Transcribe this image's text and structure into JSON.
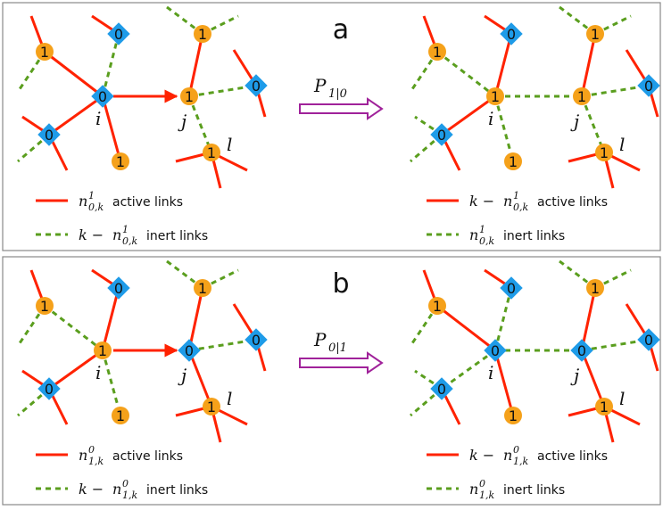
{
  "colors": {
    "active": "#ff2200",
    "inert": "#5a9e1e",
    "node_one": "#f5a11a",
    "node_zero": "#1e9be8",
    "arrow": "#a0229a",
    "frame": "#888888"
  },
  "panels": [
    {
      "letter": "a",
      "operator": "P",
      "operator_sub": "1|0",
      "left": {
        "nodes": [
          {
            "label": "1",
            "kind": "one"
          },
          {
            "label": "0",
            "kind": "zero"
          },
          {
            "label": "0",
            "kind": "zero"
          },
          {
            "label": "0",
            "kind": "zero"
          },
          {
            "label": "1",
            "kind": "one"
          },
          {
            "label": "1",
            "kind": "one"
          },
          {
            "label": "1",
            "kind": "one"
          },
          {
            "label": "0",
            "kind": "zero"
          },
          {
            "label": "1",
            "kind": "one"
          }
        ],
        "legend": [
          {
            "style": "active",
            "math": "n",
            "sup": "1",
            "sub": "0,k",
            "prefix": "",
            "text": "active links"
          },
          {
            "style": "inert",
            "math": "n",
            "sup": "1",
            "sub": "0,k",
            "prefix": "k − ",
            "text": "inert links"
          }
        ]
      },
      "right": {
        "nodes": [
          {
            "label": "1",
            "kind": "one"
          },
          {
            "label": "0",
            "kind": "zero"
          },
          {
            "label": "1",
            "kind": "one"
          },
          {
            "label": "0",
            "kind": "zero"
          },
          {
            "label": "1",
            "kind": "one"
          },
          {
            "label": "1",
            "kind": "one"
          },
          {
            "label": "1",
            "kind": "one"
          },
          {
            "label": "0",
            "kind": "zero"
          },
          {
            "label": "1",
            "kind": "one"
          }
        ],
        "legend": [
          {
            "style": "active",
            "math": "n",
            "sup": "1",
            "sub": "0,k",
            "prefix": "k − ",
            "text": "active links"
          },
          {
            "style": "inert",
            "math": "n",
            "sup": "1",
            "sub": "0,k",
            "prefix": "",
            "text": "inert links"
          }
        ]
      },
      "node_names": {
        "i": "i",
        "j": "j",
        "l": "l"
      }
    },
    {
      "letter": "b",
      "operator": "P",
      "operator_sub": "0|1",
      "left": {
        "nodes": [
          {
            "label": "1",
            "kind": "one"
          },
          {
            "label": "0",
            "kind": "zero"
          },
          {
            "label": "1",
            "kind": "one"
          },
          {
            "label": "0",
            "kind": "zero"
          },
          {
            "label": "1",
            "kind": "one"
          },
          {
            "label": "1",
            "kind": "one"
          },
          {
            "label": "0",
            "kind": "zero"
          },
          {
            "label": "0",
            "kind": "zero"
          },
          {
            "label": "1",
            "kind": "one"
          }
        ],
        "legend": [
          {
            "style": "active",
            "math": "n",
            "sup": "0",
            "sub": "1,k",
            "prefix": "",
            "text": "active links"
          },
          {
            "style": "inert",
            "math": "n",
            "sup": "0",
            "sub": "1,k",
            "prefix": "k − ",
            "text": "inert links"
          }
        ]
      },
      "right": {
        "nodes": [
          {
            "label": "1",
            "kind": "one"
          },
          {
            "label": "0",
            "kind": "zero"
          },
          {
            "label": "0",
            "kind": "zero"
          },
          {
            "label": "0",
            "kind": "zero"
          },
          {
            "label": "1",
            "kind": "one"
          },
          {
            "label": "1",
            "kind": "one"
          },
          {
            "label": "0",
            "kind": "zero"
          },
          {
            "label": "0",
            "kind": "zero"
          },
          {
            "label": "1",
            "kind": "one"
          }
        ],
        "legend": [
          {
            "style": "active",
            "math": "n",
            "sup": "0",
            "sub": "1,k",
            "prefix": "k − ",
            "text": "active links"
          },
          {
            "style": "inert",
            "math": "n",
            "sup": "0",
            "sub": "1,k",
            "prefix": "",
            "text": "inert links"
          }
        ]
      },
      "node_names": {
        "i": "i",
        "j": "j",
        "l": "l"
      }
    }
  ]
}
